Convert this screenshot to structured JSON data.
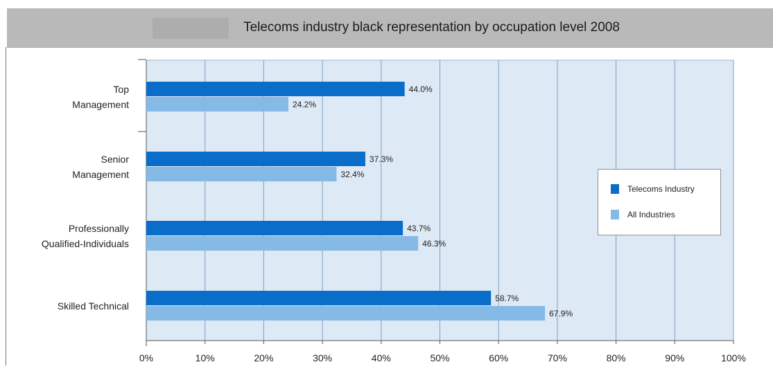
{
  "chart_data": {
    "type": "bar",
    "orientation": "horizontal",
    "title": "Telecoms industry black representation by occupation level 2008",
    "categories": [
      [
        "Top",
        "Management"
      ],
      [
        "Senior",
        "Management"
      ],
      [
        "Professionally",
        "Qualified-Individuals"
      ],
      [
        "Skilled Technical"
      ]
    ],
    "series": [
      {
        "name": "Telecoms Industry",
        "color": "#0a6dc9",
        "values": [
          44.0,
          37.3,
          43.7,
          58.7
        ],
        "labels": [
          "44.0%",
          "37.3%",
          "43.7%",
          "58.7%"
        ]
      },
      {
        "name": "All Industries",
        "color": "#85b9e6",
        "values": [
          24.2,
          32.4,
          46.3,
          67.9
        ],
        "labels": [
          "24.2%",
          "32.4%",
          "46.3%",
          "67.9%"
        ]
      }
    ],
    "xlim": [
      0,
      100
    ],
    "x_ticks": [
      "0%",
      "10%",
      "20%",
      "30%",
      "40%",
      "50%",
      "60%",
      "70%",
      "80%",
      "90%",
      "100%"
    ],
    "grid": true,
    "legend_position": "right"
  }
}
